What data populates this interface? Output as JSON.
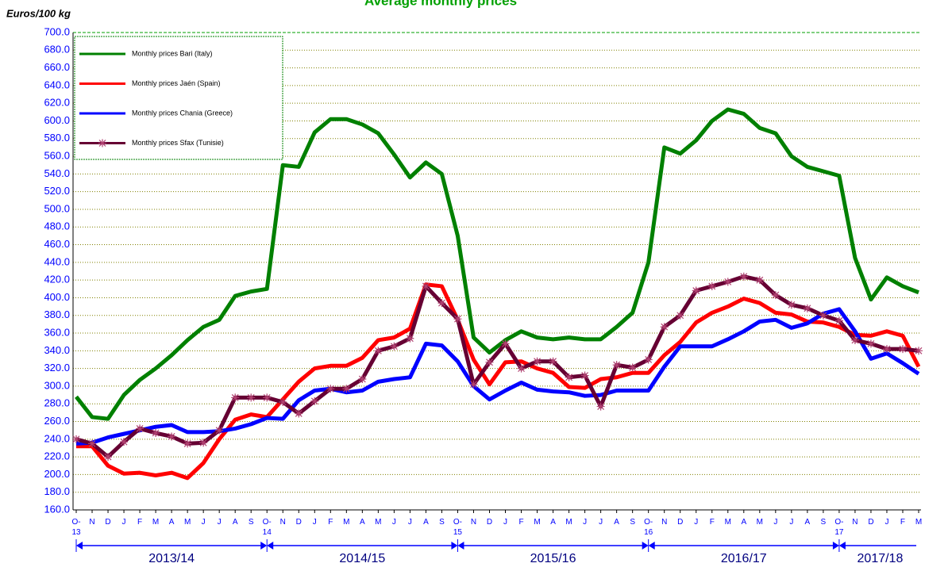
{
  "chart_data": {
    "type": "line",
    "title": "Average monthly prices",
    "y_label": "Euros/100 kg",
    "categories": [
      "O-\n13",
      "N",
      "D",
      "J",
      "F",
      "M",
      "A",
      "M",
      "J",
      "J",
      "A",
      "S",
      "O-\n14",
      "N",
      "D",
      "J",
      "F",
      "M",
      "A",
      "M",
      "J",
      "J",
      "A",
      "S",
      "O-\n15",
      "N",
      "D",
      "J",
      "F",
      "M",
      "A",
      "M",
      "J",
      "J",
      "A",
      "S",
      "O-\n16",
      "N",
      "D",
      "J",
      "F",
      "M",
      "A",
      "M",
      "J",
      "J",
      "A",
      "S",
      "O-\n17",
      "N",
      "D",
      "J",
      "F",
      "M"
    ],
    "seasons": [
      "2013/14",
      "2014/15",
      "2015/16",
      "2016/17",
      "2017/18"
    ],
    "series": [
      {
        "name": "Monthly prices Bari (Italy)",
        "color": "#008000",
        "marker": null,
        "values": [
          288,
          265,
          263,
          290,
          307,
          320,
          335,
          352,
          367,
          375,
          402,
          407,
          410,
          550,
          548,
          587,
          602,
          602,
          596,
          586,
          562,
          536,
          553,
          540,
          470,
          355,
          338,
          352,
          362,
          355,
          353,
          355,
          353,
          353,
          367,
          383,
          440,
          570,
          563,
          578,
          600,
          613,
          608,
          592,
          586,
          560,
          548,
          543,
          538,
          445,
          398,
          423,
          413,
          406
        ]
      },
      {
        "name": "Monthly prices Jaén (Spain)",
        "color": "#ff0000",
        "marker": null,
        "values": [
          232,
          232,
          210,
          201,
          202,
          199,
          202,
          196,
          213,
          240,
          262,
          268,
          265,
          285,
          305,
          320,
          323,
          323,
          332,
          352,
          355,
          365,
          415,
          413,
          375,
          330,
          302,
          327,
          328,
          320,
          315,
          299,
          298,
          308,
          310,
          315,
          315,
          335,
          350,
          372,
          383,
          390,
          399,
          394,
          383,
          381,
          373,
          372,
          367,
          358,
          357,
          362,
          357,
          322
        ]
      },
      {
        "name": "Monthly prices Chania (Greece)",
        "color": "#0000ff",
        "marker": null,
        "values": [
          235,
          236,
          242,
          246,
          250,
          254,
          256,
          248,
          248,
          249,
          252,
          257,
          264,
          263,
          284,
          295,
          297,
          293,
          295,
          305,
          308,
          310,
          348,
          346,
          328,
          300,
          285,
          295,
          304,
          296,
          294,
          293,
          289,
          290,
          295,
          295,
          295,
          322,
          345,
          345,
          345,
          353,
          362,
          373,
          375,
          366,
          371,
          382,
          387,
          362,
          331,
          337,
          326,
          314
        ]
      },
      {
        "name": "Monthly prices Sfax (Tunisie)",
        "color": "#660033",
        "marker": "star",
        "values": [
          240,
          235,
          220,
          237,
          252,
          247,
          243,
          235,
          236,
          250,
          287,
          287,
          287,
          282,
          269,
          283,
          297,
          297,
          308,
          340,
          345,
          354,
          413,
          394,
          376,
          302,
          327,
          348,
          320,
          328,
          328,
          310,
          312,
          277,
          324,
          321,
          330,
          367,
          380,
          408,
          413,
          418,
          424,
          420,
          403,
          392,
          388,
          380,
          374,
          352,
          348,
          342,
          342,
          340
        ]
      }
    ],
    "ylim": [
      160,
      700
    ],
    "yticks": [
      {
        "value": 160,
        "label": "160.0"
      },
      {
        "value": 180,
        "label": "180.0"
      },
      {
        "value": 200,
        "label": "200.0"
      },
      {
        "value": 220,
        "label": "220.0"
      },
      {
        "value": 240,
        "label": "240.0"
      },
      {
        "value": 260,
        "label": "260.0"
      },
      {
        "value": 280,
        "label": "280.0"
      },
      {
        "value": 300,
        "label": "300.0"
      },
      {
        "value": 320,
        "label": "320.0"
      },
      {
        "value": 340,
        "label": "340.0"
      },
      {
        "value": 360,
        "label": "360.0"
      },
      {
        "value": 380,
        "label": "380.0"
      },
      {
        "value": 400,
        "label": "400.0"
      },
      {
        "value": 420,
        "label": "420.0"
      },
      {
        "value": 440,
        "label": "440.0"
      },
      {
        "value": 460,
        "label": "460.0"
      },
      {
        "value": 480,
        "label": "480.0"
      },
      {
        "value": 500,
        "label": "500.0"
      },
      {
        "value": 520,
        "label": "520.0"
      },
      {
        "value": 540,
        "label": "540.0"
      },
      {
        "value": 560,
        "label": "560.0"
      },
      {
        "value": 580,
        "label": "580.0"
      },
      {
        "value": 600,
        "label": "600.0"
      },
      {
        "value": 620,
        "label": "620.0"
      },
      {
        "value": 640,
        "label": "640.0"
      },
      {
        "value": 660,
        "label": "660.0"
      },
      {
        "value": 680,
        "label": "680.0"
      },
      {
        "value": 700,
        "label": "700.0"
      }
    ],
    "grid": true,
    "legend": "upper left"
  }
}
